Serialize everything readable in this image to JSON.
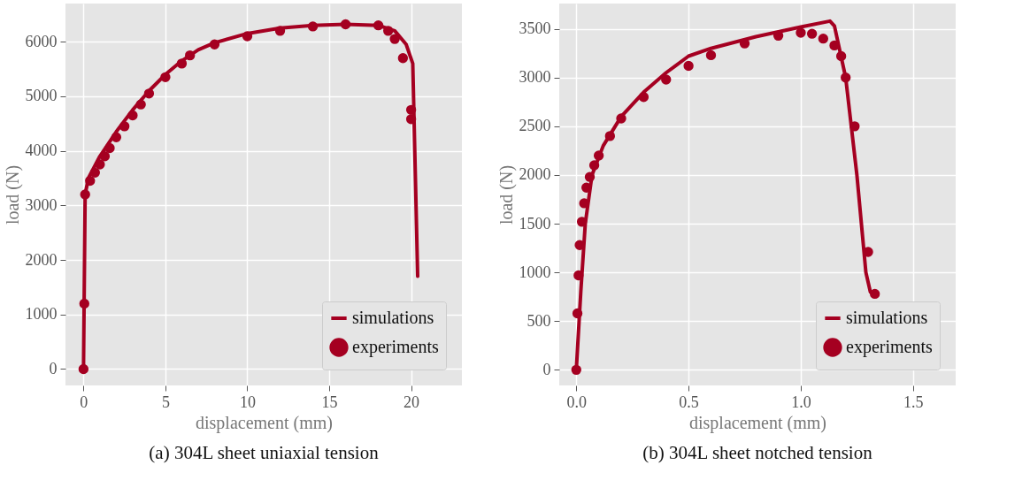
{
  "chart_data": [
    {
      "type": "line",
      "title": "(a) 304L sheet uniaxial tension",
      "xlabel": "displacement (mm)",
      "ylabel": "load (N)",
      "xlim": [
        -1.1,
        23.1
      ],
      "ylim": [
        -300,
        6700
      ],
      "xticks": [
        0,
        5,
        10,
        15,
        20
      ],
      "yticks": [
        0,
        1000,
        2000,
        3000,
        4000,
        5000,
        6000
      ],
      "grid": true,
      "legend": "bottom right",
      "line_style": "solid",
      "series": [
        {
          "name": "simulations",
          "type": "line",
          "color": "#a50021",
          "x": [
            0,
            0.1,
            0.3,
            1,
            2,
            3,
            4,
            5,
            6,
            7,
            8,
            10,
            12,
            14,
            16,
            18,
            19,
            19.7,
            20.1,
            20.3,
            20.4
          ],
          "values": [
            0,
            3200,
            3500,
            3900,
            4350,
            4750,
            5100,
            5400,
            5650,
            5850,
            5980,
            6150,
            6250,
            6300,
            6320,
            6300,
            6200,
            5950,
            5600,
            3000,
            1700
          ]
        },
        {
          "name": "experiments",
          "type": "scatter",
          "color": "#a50021",
          "x": [
            0,
            0.05,
            0.1,
            0.4,
            0.7,
            1,
            1.3,
            1.6,
            2,
            2.5,
            3,
            3.5,
            4,
            5,
            6,
            6.5,
            8,
            10,
            12,
            14,
            16,
            18,
            18.6,
            19,
            19.5,
            20,
            20
          ],
          "values": [
            0,
            1200,
            3200,
            3450,
            3600,
            3750,
            3900,
            4050,
            4250,
            4450,
            4650,
            4850,
            5050,
            5350,
            5600,
            5750,
            5950,
            6100,
            6200,
            6280,
            6320,
            6300,
            6200,
            6050,
            5700,
            4750,
            4580
          ]
        }
      ]
    },
    {
      "type": "line",
      "title": "(b) 304L sheet notched tension",
      "xlabel": "displacement (mm)",
      "ylabel": "load (N)",
      "xlim": [
        -0.076,
        1.69
      ],
      "ylim": [
        -160,
        3760
      ],
      "xticks": [
        {
          "value": 0,
          "label": "0.0"
        },
        {
          "value": 0.5,
          "label": "0.5"
        },
        {
          "value": 1,
          "label": "1.0"
        },
        {
          "value": 1.5,
          "label": "1.5"
        }
      ],
      "yticks": [
        0,
        500,
        1000,
        1500,
        2000,
        2500,
        3000,
        3500
      ],
      "grid": true,
      "legend": "bottom right",
      "line_style": "solid",
      "series": [
        {
          "name": "simulations",
          "type": "line",
          "color": "#a50021",
          "x": [
            0,
            0.02,
            0.04,
            0.07,
            0.12,
            0.2,
            0.3,
            0.4,
            0.5,
            0.6,
            0.8,
            1.0,
            1.13,
            1.15,
            1.2,
            1.25,
            1.29,
            1.31
          ],
          "values": [
            0,
            800,
            1500,
            2000,
            2300,
            2600,
            2850,
            3050,
            3220,
            3300,
            3420,
            3520,
            3580,
            3530,
            3000,
            2000,
            1000,
            800
          ]
        },
        {
          "name": "experiments",
          "type": "scatter",
          "color": "#a50021",
          "x": [
            0,
            0.005,
            0.01,
            0.015,
            0.025,
            0.035,
            0.045,
            0.06,
            0.08,
            0.1,
            0.15,
            0.2,
            0.3,
            0.4,
            0.5,
            0.6,
            0.75,
            0.9,
            1.0,
            1.05,
            1.1,
            1.15,
            1.18,
            1.2,
            1.24,
            1.3,
            1.33
          ],
          "values": [
            0,
            580,
            970,
            1280,
            1520,
            1710,
            1870,
            1980,
            2100,
            2200,
            2400,
            2580,
            2800,
            2980,
            3120,
            3230,
            3350,
            3430,
            3460,
            3450,
            3400,
            3330,
            3220,
            3000,
            2500,
            1210,
            780
          ]
        }
      ]
    }
  ]
}
